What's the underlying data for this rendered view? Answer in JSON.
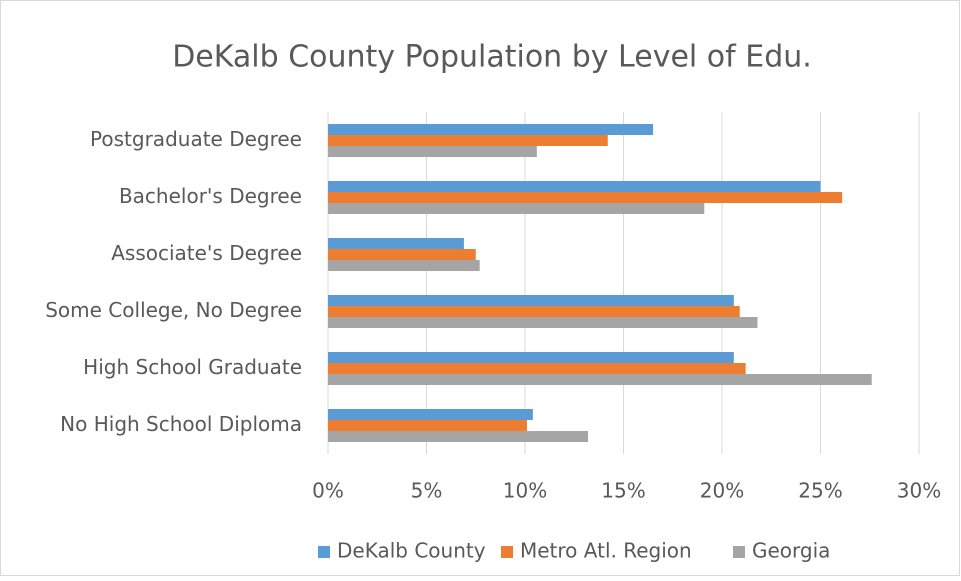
{
  "chart_data": {
    "type": "hbar",
    "title": "DeKalb County Population by Level of Edu.",
    "categories": [
      "Postgraduate Degree",
      "Bachelor's Degree",
      "Associate's Degree",
      "Some College, No Degree",
      "High School Graduate",
      "No High School Diploma"
    ],
    "series": [
      {
        "name": "DeKalb County",
        "color": "#5b9bd5",
        "values": [
          16.5,
          25.0,
          6.9,
          20.6,
          20.6,
          10.4
        ]
      },
      {
        "name": "Metro Atl. Region",
        "color": "#ed7d31",
        "values": [
          14.2,
          26.1,
          7.5,
          20.9,
          21.2,
          10.1
        ]
      },
      {
        "name": "Georgia",
        "color": "#a5a5a5",
        "values": [
          10.6,
          19.1,
          7.7,
          21.8,
          27.6,
          13.2
        ]
      }
    ],
    "xlim": [
      0,
      30
    ],
    "xticks": [
      {
        "value": 0,
        "label": "0%"
      },
      {
        "value": 5,
        "label": "5%"
      },
      {
        "value": 10,
        "label": "10%"
      },
      {
        "value": 15,
        "label": "15%"
      },
      {
        "value": 20,
        "label": "20%"
      },
      {
        "value": 25,
        "label": "25%"
      },
      {
        "value": 30,
        "label": "30%"
      }
    ],
    "grid": true,
    "legend": "bottom"
  }
}
